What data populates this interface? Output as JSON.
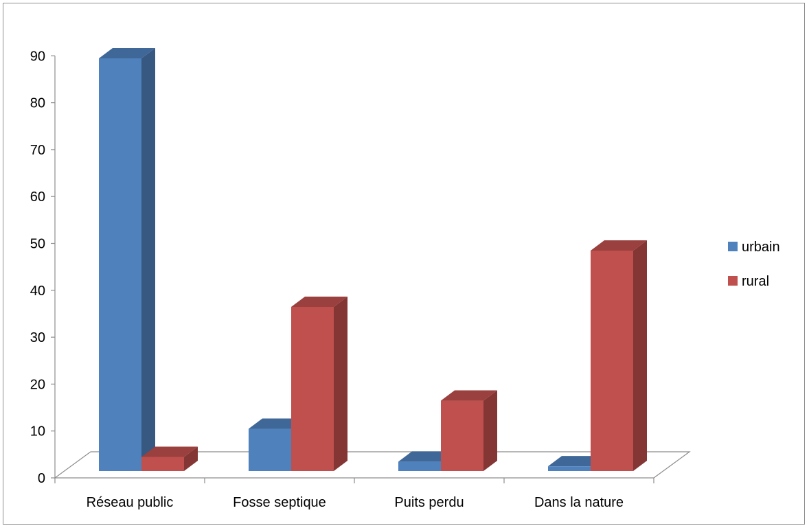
{
  "chart_data": {
    "type": "bar",
    "style": "3d-clustered-column",
    "categories": [
      "Réseau public",
      "Fosse septique",
      "Puits perdu",
      "Dans la nature"
    ],
    "series": [
      {
        "name": "urbain",
        "values": [
          88,
          9,
          2,
          1
        ],
        "color": "#4f81bd"
      },
      {
        "name": "rural",
        "values": [
          3,
          35,
          15,
          47
        ],
        "color": "#c0504d"
      }
    ],
    "yticks": [
      0,
      10,
      20,
      30,
      40,
      50,
      60,
      70,
      80,
      90
    ],
    "ylim": [
      0,
      90
    ],
    "legend_position": "right",
    "grid": false,
    "title": "",
    "xlabel": "",
    "ylabel": ""
  }
}
